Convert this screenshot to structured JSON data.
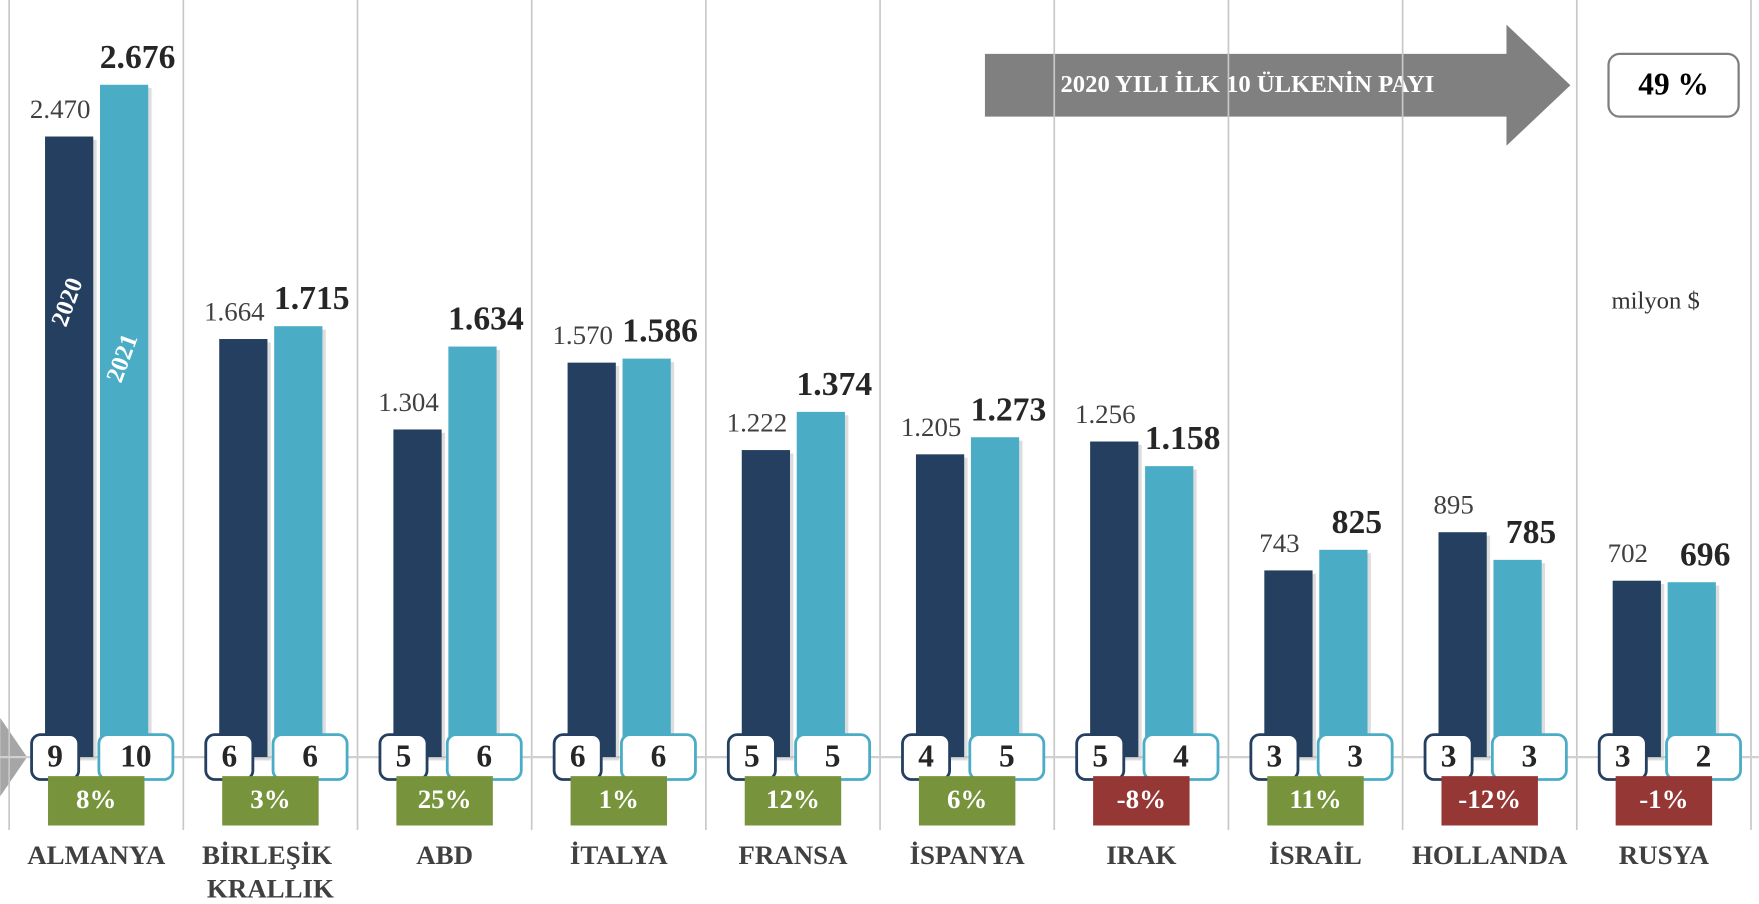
{
  "chart_data": {
    "type": "bar",
    "categories": [
      "ALMANYA",
      "BİRLEŞİK KRALLIK",
      "ABD",
      "İTALYA",
      "FRANSA",
      "İSPANYA",
      "IRAK",
      "İSRAİL",
      "HOLLANDA",
      "RUSYA"
    ],
    "series": [
      {
        "name": "2020",
        "color": "#243f60",
        "values": [
          2470,
          1664,
          1304,
          1570,
          1222,
          1205,
          1256,
          743,
          895,
          702
        ],
        "value_labels": [
          "2.470",
          "1.664",
          "1.304",
          "1.570",
          "1.222",
          "1.205",
          "1.256",
          "743",
          "895",
          "702"
        ],
        "ranks": [
          9,
          6,
          5,
          6,
          5,
          4,
          5,
          3,
          3,
          3
        ]
      },
      {
        "name": "2021",
        "color": "#4bacc6",
        "values": [
          2676,
          1715,
          1634,
          1586,
          1374,
          1273,
          1158,
          825,
          785,
          696
        ],
        "value_labels": [
          "2.676",
          "1.715",
          "1.634",
          "1.586",
          "1.374",
          "1.273",
          "1.158",
          "825",
          "785",
          "696"
        ],
        "ranks": [
          10,
          6,
          6,
          6,
          5,
          5,
          4,
          3,
          3,
          2
        ]
      }
    ],
    "changes": [
      8,
      3,
      25,
      1,
      12,
      6,
      -8,
      11,
      -12,
      -1
    ],
    "change_labels": [
      "8%",
      "3%",
      "25%",
      "1%",
      "12%",
      "6%",
      "-8%",
      "11%",
      "-12%",
      "-1%"
    ],
    "positive_color": "#77933c",
    "negative_color": "#953735",
    "ylim": [
      0,
      3000
    ],
    "annotation": "2020 YILI İLK 10 ÜLKENİN PAYI",
    "share": {
      "value": 49,
      "label": "49 %"
    },
    "unit": "milyon $"
  }
}
